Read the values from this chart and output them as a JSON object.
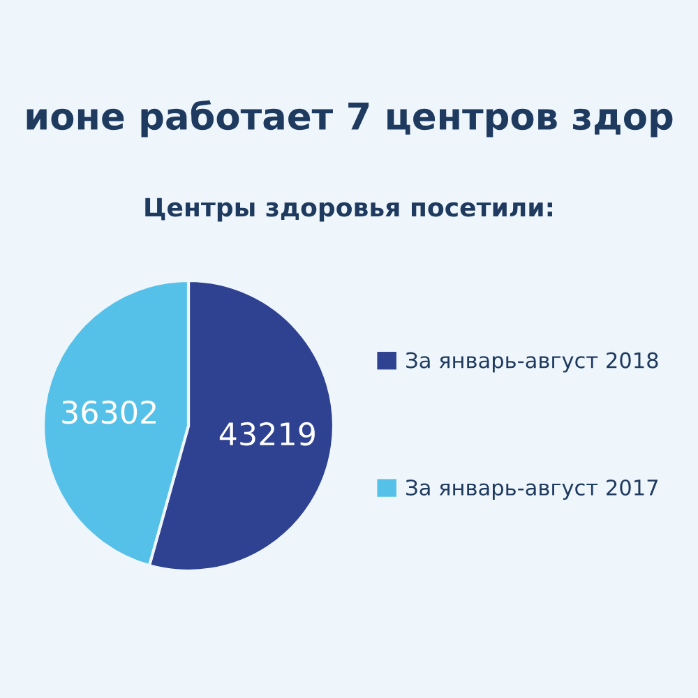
{
  "chart_data": {
    "type": "pie",
    "title": "ионе работает 7 центров здор",
    "subtitle": "Центры здоровья посетили:",
    "categories": [
      "За январь-август 2018",
      "За январь-август 2017"
    ],
    "values": [
      43219,
      36302
    ],
    "colors": [
      "#2f4191",
      "#56c1e8"
    ],
    "data_labels": true,
    "legend": "right"
  }
}
